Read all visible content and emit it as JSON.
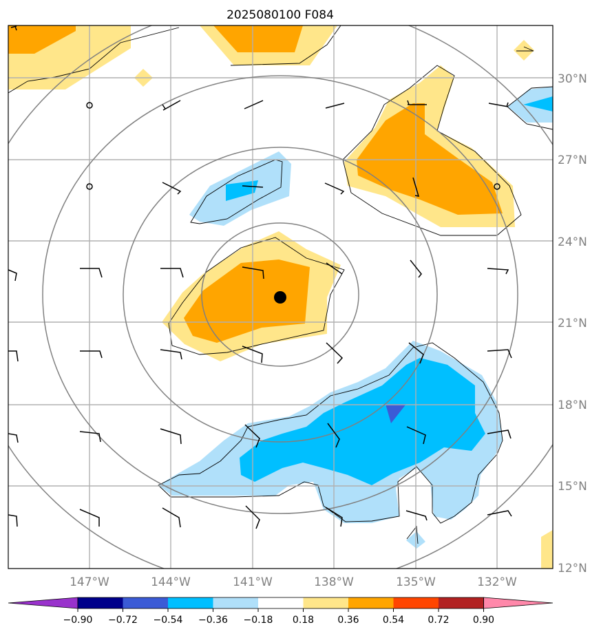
{
  "title": "2025080100 F084",
  "map": {
    "lat_labels": [
      "30°N",
      "27°N",
      "24°N",
      "21°N",
      "18°N",
      "15°N",
      "12°N"
    ],
    "lon_labels": [
      "147°W",
      "144°W",
      "141°W",
      "138°W",
      "135°W",
      "132°W"
    ],
    "center_marker": {
      "lon": -140.0,
      "lat": 21.9
    },
    "colors": {
      "gridline": "#b0b0b0",
      "range_rings": "#808080",
      "contour": "#000000",
      "wind_barbs": "#000000"
    }
  },
  "colorbar": {
    "ticks": [
      "−0.90",
      "−0.72",
      "−0.54",
      "−0.36",
      "−0.18",
      "0.18",
      "0.36",
      "0.54",
      "0.72",
      "0.90"
    ],
    "colors": [
      "#9932cc",
      "#00008b",
      "#3b5bd6",
      "#00bfff",
      "#b0e0fa",
      "#ffffff",
      "#ffe68a",
      "#ffa500",
      "#ff4500",
      "#b22222",
      "#ff88aa"
    ]
  }
}
